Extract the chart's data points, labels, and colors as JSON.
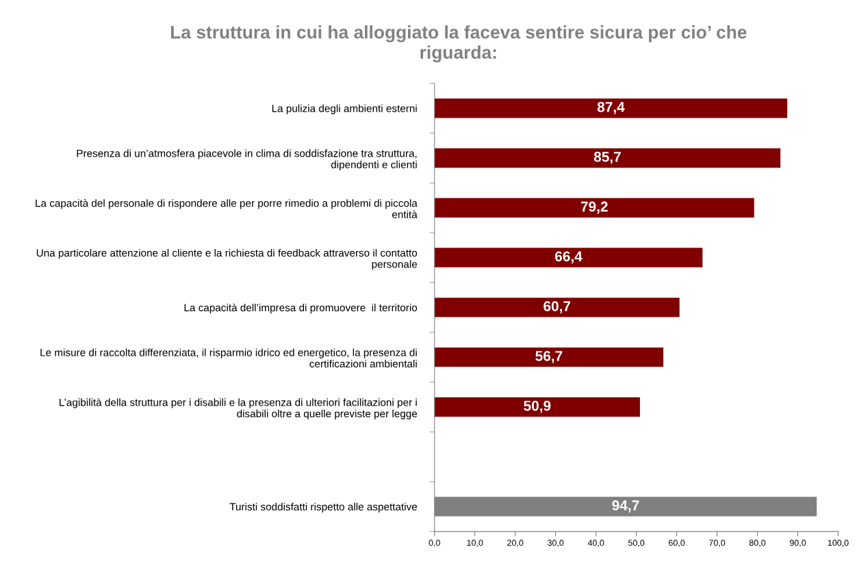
{
  "chart_data": {
    "type": "bar",
    "orientation": "horizontal",
    "title": "La struttura in cui ha alloggiato la faceva sentire sicura per cio’ che riguarda:",
    "categories": [
      "La pulizia degli ambienti esterni",
      "Presenza di un’atmosfera piacevole in clima di soddisfazione tra struttura, dipendenti e clienti",
      "La capacità del personale di rispondere alle per porre rimedio a problemi di piccola entità",
      "Una particolare attenzione al cliente e la richiesta di feedback attraverso il contatto personale",
      "La capacità dell’impresa di promuovere  il territorio",
      "Le misure di raccolta differenziata, il risparmio idrico ed energetico, la presenza di certificazioni ambientali",
      "L’agibilità della struttura per i disabili e la presenza di ulteriori facilitazioni per i disabili oltre a quelle previste per legge",
      null,
      "Turisti soddisfatti rispetto alle aspettative"
    ],
    "values": [
      87.4,
      85.7,
      79.2,
      66.4,
      60.7,
      56.7,
      50.9,
      null,
      94.7
    ],
    "colors": [
      "#800000",
      "#800000",
      "#800000",
      "#800000",
      "#800000",
      "#800000",
      "#800000",
      "#800000",
      "#808080"
    ],
    "value_labels": [
      "87,4",
      "85,7",
      "79,2",
      "66,4",
      "60,7",
      "56,7",
      "50,9",
      null,
      "94,7"
    ],
    "xlim": [
      0,
      100
    ],
    "xticks": [
      {
        "value": 0,
        "label": "0,0"
      },
      {
        "value": 10,
        "label": "10,0"
      },
      {
        "value": 20,
        "label": "20,0"
      },
      {
        "value": 30,
        "label": "30,0"
      },
      {
        "value": 40,
        "label": "40,0"
      },
      {
        "value": 50,
        "label": "50,0"
      },
      {
        "value": 60,
        "label": "60,0"
      },
      {
        "value": 70,
        "label": "70,0"
      },
      {
        "value": 80,
        "label": "80,0"
      },
      {
        "value": 90,
        "label": "90,0"
      },
      {
        "value": 100,
        "label": "100,0"
      }
    ],
    "grid": false
  }
}
